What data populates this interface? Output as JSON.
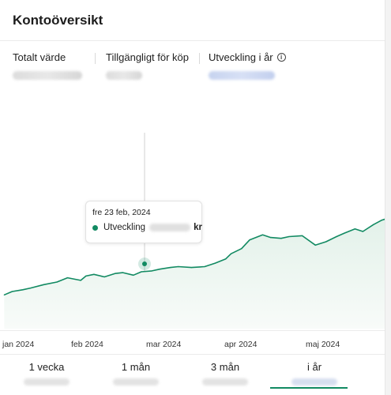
{
  "panel": {
    "title": "Kontoöversikt"
  },
  "summary": {
    "total_label": "Totalt värde",
    "available_label": "Tillgängligt för köp",
    "change_label": "Utveckling i år",
    "info_icon": "info-icon"
  },
  "chart_data": {
    "type": "area",
    "title": "",
    "xlabel": "",
    "ylabel": "",
    "x_ticks": [
      "jan 2024",
      "feb 2024",
      "mar 2024",
      "apr 2024",
      "maj 2024"
    ],
    "y_ticks_visible": false,
    "grid": false,
    "series": [
      {
        "name": "Utveckling",
        "color": "#128a62",
        "x": [
          "2024-01-02",
          "2024-01-05",
          "2024-01-09",
          "2024-01-12",
          "2024-01-17",
          "2024-01-22",
          "2024-01-26",
          "2024-01-31",
          "2024-02-02",
          "2024-02-05",
          "2024-02-09",
          "2024-02-13",
          "2024-02-16",
          "2024-02-20",
          "2024-02-23",
          "2024-02-27",
          "2024-03-01",
          "2024-03-05",
          "2024-03-08",
          "2024-03-13",
          "2024-03-18",
          "2024-03-22",
          "2024-03-26",
          "2024-03-28",
          "2024-04-01",
          "2024-04-04",
          "2024-04-09",
          "2024-04-12",
          "2024-04-16",
          "2024-04-19",
          "2024-04-24",
          "2024-04-29",
          "2024-05-03",
          "2024-05-07",
          "2024-05-10",
          "2024-05-14",
          "2024-05-17",
          "2024-05-21",
          "2024-05-24",
          "2024-05-29",
          "2024-06-03"
        ],
        "values": [
          8,
          12,
          14,
          16,
          20,
          23,
          28,
          25,
          30,
          32,
          29,
          33,
          34,
          31,
          35,
          36,
          38,
          40,
          41,
          40,
          41,
          45,
          50,
          56,
          62,
          72,
          78,
          75,
          74,
          76,
          77,
          66,
          70,
          76,
          80,
          85,
          82,
          90,
          95,
          100,
          101
        ]
      }
    ],
    "tooltip": {
      "date": "fre 23 feb, 2024",
      "series_label": "Utveckling",
      "unit": "kr"
    }
  },
  "tabs": [
    {
      "label": "1 vecka",
      "active": false
    },
    {
      "label": "1 mån",
      "active": false
    },
    {
      "label": "3 mån",
      "active": false
    },
    {
      "label": "i år",
      "active": true
    }
  ],
  "colors": {
    "accent": "#128a62",
    "area_fill": "#eef7f2"
  }
}
